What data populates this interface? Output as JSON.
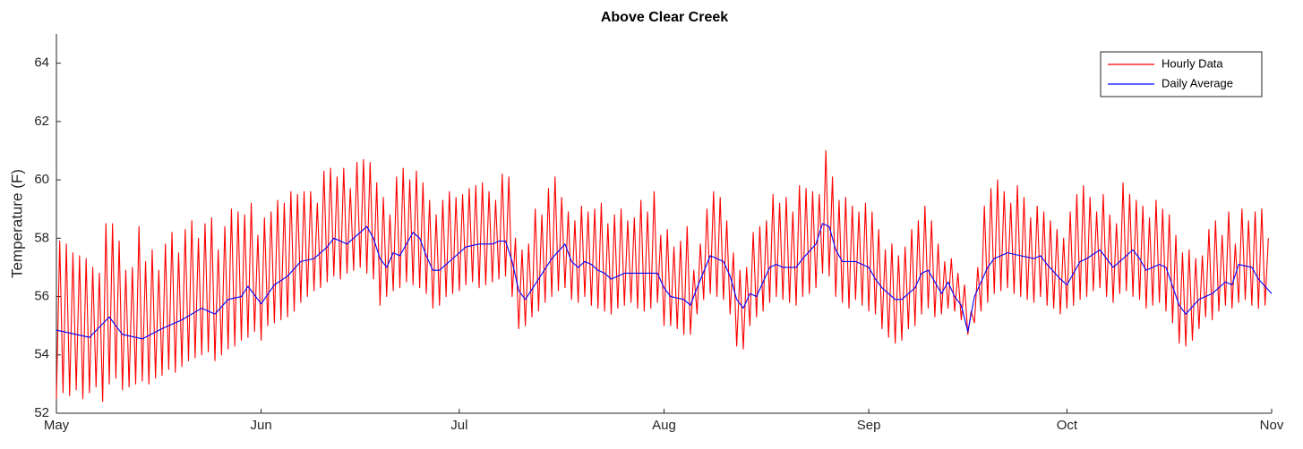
{
  "chart_data": {
    "type": "line",
    "title": "Above Clear Creek",
    "ylabel": "Temperature (F)",
    "xlim": [
      0,
      184
    ],
    "xticks": [
      {
        "value": 0,
        "label": "May"
      },
      {
        "value": 31,
        "label": "Jun"
      },
      {
        "value": 61,
        "label": "Jul"
      },
      {
        "value": 92,
        "label": "Aug"
      },
      {
        "value": 123,
        "label": "Sep"
      },
      {
        "value": 153,
        "label": "Oct"
      },
      {
        "value": 184,
        "label": "Nov"
      }
    ],
    "ylim": [
      52,
      65
    ],
    "yticks": [
      52,
      54,
      56,
      58,
      60,
      62,
      64
    ],
    "grid": false,
    "legend": "northeast",
    "series": [
      {
        "name": "Hourly Data",
        "color": "#ff0000",
        "x": [
          0,
          0.5,
          1,
          1.5,
          2,
          2.5,
          3,
          3.5,
          4,
          4.5,
          5,
          5.5,
          6,
          6.5,
          7,
          7.5,
          8,
          8.5,
          9,
          9.5,
          10,
          10.5,
          11,
          11.5,
          12,
          12.5,
          13,
          13.5,
          14,
          14.5,
          15,
          15.5,
          16,
          16.5,
          17,
          17.5,
          18,
          18.5,
          19,
          19.5,
          20,
          20.5,
          21,
          21.5,
          22,
          22.5,
          23,
          23.5,
          24,
          24.5,
          25,
          25.5,
          26,
          26.5,
          27,
          27.5,
          28,
          28.5,
          29,
          29.5,
          30,
          30.5,
          31,
          31.5,
          32,
          32.5,
          33,
          33.5,
          34,
          34.5,
          35,
          35.5,
          36,
          36.5,
          37,
          37.5,
          38,
          38.5,
          39,
          39.5,
          40,
          40.5,
          41,
          41.5,
          42,
          42.5,
          43,
          43.5,
          44,
          44.5,
          45,
          45.5,
          46,
          46.5,
          47,
          47.5,
          48,
          48.5,
          49,
          49.5,
          50,
          50.5,
          51,
          51.5,
          52,
          52.5,
          53,
          53.5,
          54,
          54.5,
          55,
          55.5,
          56,
          56.5,
          57,
          57.5,
          58,
          58.5,
          59,
          59.5,
          60,
          60.5,
          61,
          61.5,
          62,
          62.5,
          63,
          63.5,
          64,
          64.5,
          65,
          65.5,
          66,
          66.5,
          67,
          67.5,
          68,
          68.5,
          69,
          69.5,
          70,
          70.5,
          71,
          71.5,
          72,
          72.5,
          73,
          73.5,
          74,
          74.5,
          75,
          75.5,
          76,
          76.5,
          77,
          77.5,
          78,
          78.5,
          79,
          79.5,
          80,
          80.5,
          81,
          81.5,
          82,
          82.5,
          83,
          83.5,
          84,
          84.5,
          85,
          85.5,
          86,
          86.5,
          87,
          87.5,
          88,
          88.5,
          89,
          89.5,
          90,
          90.5,
          91,
          91.5,
          92,
          92.5,
          93,
          93.5,
          94,
          94.5,
          95,
          95.5,
          96,
          96.5,
          97,
          97.5,
          98,
          98.5,
          99,
          99.5,
          100,
          100.5,
          101,
          101.5,
          102,
          102.5,
          103,
          103.5,
          104,
          104.5,
          105,
          105.5,
          106,
          106.5,
          107,
          107.5,
          108,
          108.5,
          109,
          109.5,
          110,
          110.5,
          111,
          111.5,
          112,
          112.5,
          113,
          113.5,
          114,
          114.5,
          115,
          115.5,
          116,
          116.5,
          117,
          117.5,
          118,
          118.5,
          119,
          119.5,
          120,
          120.5,
          121,
          121.5,
          122,
          122.5,
          123,
          123.5,
          124,
          124.5,
          125,
          125.5,
          126,
          126.5,
          127,
          127.5,
          128,
          128.5,
          129,
          129.5,
          130,
          130.5,
          131,
          131.5,
          132,
          132.5,
          133,
          133.5,
          134,
          134.5,
          135,
          135.5,
          136,
          136.5,
          137,
          137.5,
          138,
          138.5,
          139,
          139.5,
          140,
          140.5,
          141,
          141.5,
          142,
          142.5,
          143,
          143.5,
          144,
          144.5,
          145,
          145.5,
          146,
          146.5,
          147,
          147.5,
          148,
          148.5,
          149,
          149.5,
          150,
          150.5,
          151,
          151.5,
          152,
          152.5,
          153,
          153.5,
          154,
          154.5,
          155,
          155.5,
          156,
          156.5,
          157,
          157.5,
          158,
          158.5,
          159,
          159.5,
          160,
          160.5,
          161,
          161.5,
          162,
          162.5,
          163,
          163.5,
          164,
          164.5,
          165,
          165.5,
          166,
          166.5,
          167,
          167.5,
          168,
          168.5,
          169,
          169.5,
          170,
          170.5,
          171,
          171.5,
          172,
          172.5,
          173,
          173.5,
          174,
          174.5,
          175,
          175.5,
          176,
          176.5,
          177,
          177.5,
          178,
          178.5,
          179,
          179.5,
          180,
          180.5,
          181,
          181.5,
          182,
          182.5,
          183,
          183.5
        ],
        "values": [
          52.5,
          57.9,
          52.7,
          57.8,
          52.6,
          57.5,
          52.8,
          57.4,
          52.5,
          57.3,
          52.7,
          57.0,
          52.9,
          56.8,
          52.4,
          58.5,
          53.0,
          58.5,
          53.2,
          57.9,
          52.8,
          56.9,
          52.9,
          57.0,
          53.0,
          58.4,
          53.1,
          57.2,
          53.0,
          57.6,
          53.2,
          56.9,
          53.3,
          57.8,
          53.5,
          58.2,
          53.4,
          57.5,
          53.6,
          58.3,
          53.8,
          58.6,
          53.9,
          58.0,
          54.0,
          58.5,
          54.1,
          58.7,
          53.8,
          57.6,
          54.0,
          58.4,
          54.2,
          59.0,
          54.3,
          58.9,
          54.5,
          58.8,
          54.6,
          59.2,
          54.8,
          58.1,
          54.5,
          58.7,
          55.0,
          58.9,
          55.1,
          59.3,
          55.2,
          59.2,
          55.3,
          59.6,
          55.5,
          59.5,
          55.8,
          59.6,
          56.0,
          59.6,
          56.2,
          59.2,
          56.3,
          60.3,
          56.5,
          60.4,
          56.7,
          60.1,
          56.6,
          60.4,
          56.8,
          59.7,
          56.9,
          60.6,
          57.0,
          60.7,
          56.8,
          60.6,
          56.6,
          59.9,
          55.7,
          59.4,
          56.0,
          58.8,
          56.2,
          60.1,
          56.3,
          60.4,
          56.5,
          60.0,
          56.4,
          60.3,
          56.3,
          59.9,
          56.1,
          59.3,
          55.6,
          58.8,
          55.7,
          59.3,
          56.0,
          59.6,
          56.1,
          59.4,
          56.2,
          59.5,
          56.4,
          59.7,
          56.5,
          59.8,
          56.3,
          59.9,
          56.4,
          59.6,
          56.5,
          59.3,
          56.6,
          60.2,
          56.7,
          60.1,
          56.0,
          58.0,
          54.9,
          57.6,
          55.0,
          57.8,
          55.3,
          59.0,
          55.5,
          58.8,
          55.8,
          59.7,
          56.0,
          60.1,
          56.2,
          59.4,
          56.3,
          58.9,
          55.9,
          58.6,
          55.8,
          59.1,
          56.0,
          58.9,
          55.7,
          59.0,
          55.6,
          59.2,
          55.5,
          58.5,
          55.4,
          58.8,
          55.6,
          59.0,
          55.7,
          58.6,
          55.8,
          58.7,
          55.6,
          59.3,
          55.5,
          58.9,
          55.6,
          59.6,
          55.8,
          58.1,
          55.0,
          58.3,
          55.0,
          57.7,
          54.9,
          57.9,
          54.7,
          58.4,
          54.7,
          56.9,
          55.4,
          57.8,
          55.9,
          59.0,
          56.1,
          59.6,
          56.0,
          59.4,
          55.9,
          58.6,
          55.4,
          57.5,
          54.3,
          56.9,
          54.2,
          57.0,
          55.0,
          58.2,
          55.3,
          58.4,
          55.5,
          58.6,
          55.8,
          59.5,
          56.0,
          59.2,
          55.9,
          59.4,
          55.8,
          58.9,
          55.7,
          59.8,
          56.0,
          59.7,
          56.1,
          59.6,
          56.3,
          59.5,
          56.8,
          61.0,
          56.7,
          60.1,
          56.0,
          59.3,
          55.8,
          59.4,
          55.6,
          59.1,
          55.9,
          58.9,
          55.7,
          59.2,
          55.5,
          58.9,
          55.4,
          58.3,
          54.9,
          57.6,
          54.6,
          57.8,
          54.4,
          57.4,
          54.5,
          57.7,
          54.9,
          58.3,
          55.0,
          58.6,
          55.4,
          59.1,
          55.6,
          58.6,
          55.3,
          57.8,
          55.4,
          57.2,
          55.6,
          57.3,
          55.5,
          56.8,
          55.2,
          56.4,
          54.7,
          55.5,
          55.1,
          57.0,
          55.5,
          59.1,
          55.8,
          59.7,
          56.1,
          60.0,
          56.2,
          59.6,
          56.3,
          59.2,
          56.1,
          59.8,
          56.0,
          59.4,
          55.9,
          58.7,
          55.8,
          59.1,
          56.0,
          58.9,
          55.7,
          58.6,
          55.6,
          58.3,
          55.4,
          58.0,
          55.6,
          58.9,
          55.7,
          59.5,
          55.9,
          59.8,
          56.0,
          59.4,
          56.2,
          58.9,
          56.3,
          59.5,
          56.0,
          58.8,
          55.8,
          58.5,
          56.1,
          59.9,
          56.2,
          59.5,
          56.0,
          59.3,
          55.9,
          59.1,
          55.6,
          58.7,
          55.7,
          59.3,
          55.8,
          59.0,
          55.5,
          58.8,
          55.1,
          58.1,
          54.4,
          57.5,
          54.3,
          57.6,
          54.5,
          57.3,
          54.9,
          57.4,
          55.3,
          58.3,
          55.2,
          58.6,
          55.5,
          58.1,
          55.7,
          58.9,
          55.6,
          57.8,
          55.8,
          59.0,
          55.9,
          58.6,
          55.7,
          58.9,
          55.6,
          59.0,
          55.7,
          58.0
        ]
      },
      {
        "name": "Daily Average",
        "color": "#0000ff",
        "x": [
          0,
          5,
          8,
          10,
          13,
          16,
          19,
          22,
          24,
          26,
          28,
          29,
          31,
          33,
          35,
          37,
          39,
          41,
          42,
          44,
          46,
          47,
          48,
          49,
          50,
          51,
          52,
          54,
          55,
          56,
          57,
          58,
          60,
          61,
          62,
          64,
          66,
          67,
          68,
          69,
          70,
          71,
          73,
          75,
          77,
          78,
          79,
          80,
          81,
          82,
          83,
          84,
          86,
          88,
          91,
          92,
          93,
          95,
          96,
          97,
          99,
          101,
          102,
          103,
          104,
          105,
          106,
          107,
          108,
          109,
          110,
          112,
          113,
          115,
          116,
          117,
          118,
          119,
          121,
          123,
          124,
          125,
          126,
          127,
          128,
          130,
          131,
          132,
          134,
          135,
          136,
          137,
          138,
          139,
          141,
          142,
          144,
          146,
          148,
          149,
          150,
          152,
          153,
          155,
          156,
          158,
          159,
          160,
          162,
          163,
          164,
          165,
          167,
          168,
          170,
          171,
          173,
          175,
          177,
          178,
          179,
          181,
          182,
          184
        ],
        "values": [
          54.85,
          54.6,
          55.3,
          54.7,
          54.55,
          54.9,
          55.2,
          55.6,
          55.4,
          55.9,
          56.0,
          56.35,
          55.75,
          56.4,
          56.7,
          57.2,
          57.3,
          57.7,
          58.0,
          57.8,
          58.2,
          58.4,
          58.0,
          57.3,
          57.0,
          57.5,
          57.4,
          58.2,
          58.0,
          57.4,
          56.9,
          56.9,
          57.3,
          57.5,
          57.7,
          57.8,
          57.8,
          57.9,
          57.9,
          57.2,
          56.2,
          55.9,
          56.6,
          57.3,
          57.8,
          57.2,
          57.0,
          57.2,
          57.1,
          56.9,
          56.8,
          56.6,
          56.8,
          56.8,
          56.8,
          56.3,
          56.0,
          55.9,
          55.7,
          56.3,
          57.4,
          57.2,
          56.7,
          55.9,
          55.6,
          56.1,
          56.0,
          56.5,
          57.0,
          57.1,
          57.0,
          57.0,
          57.3,
          57.8,
          58.5,
          58.4,
          57.6,
          57.2,
          57.2,
          57.0,
          56.6,
          56.3,
          56.1,
          55.9,
          55.9,
          56.3,
          56.8,
          56.9,
          56.1,
          56.5,
          56.0,
          55.7,
          54.8,
          56.0,
          57.0,
          57.3,
          57.5,
          57.4,
          57.3,
          57.4,
          57.1,
          56.6,
          56.4,
          57.2,
          57.3,
          57.6,
          57.3,
          57.0,
          57.4,
          57.6,
          57.3,
          56.9,
          57.1,
          57.0,
          55.7,
          55.4,
          55.9,
          56.1,
          56.5,
          56.4,
          57.1,
          57.0,
          56.6,
          56.1
        ]
      }
    ]
  }
}
